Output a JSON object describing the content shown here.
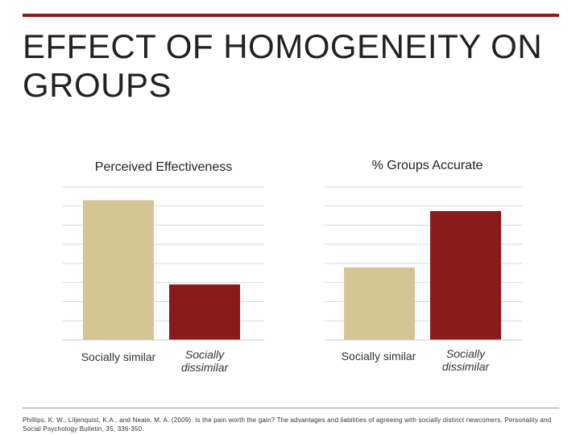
{
  "slide": {
    "title": "EFFECT OF HOMOGENEITY ON GROUPS",
    "citation": "Phillips, K. W., Liljenquist, K.A., and Neale, M. A. (2009). Is the pain worth the gain? The advantages and liabilities of agreeing with socially distinct newcomers. Personality and Social Psychology Bulletin, 35, 336-350."
  },
  "colors": {
    "accent": "#8c1b1e",
    "similar": "#d5c595",
    "dissimilar": "#8b1a1a",
    "grid": "#d9d9d9"
  },
  "chart_data": [
    {
      "type": "bar",
      "title": "Perceived Effectiveness",
      "categories": [
        "Socially similar",
        "Socially dissimilar"
      ],
      "values": [
        7.3,
        2.9
      ],
      "ylim": [
        0,
        8
      ],
      "grid": true,
      "italic_categories": [
        false,
        true
      ]
    },
    {
      "type": "bar",
      "title": "% Groups Accurate",
      "categories": [
        "Socially similar",
        "Socially dissimilar"
      ],
      "values": [
        45,
        80
      ],
      "ylim": [
        0,
        95
      ],
      "grid": true,
      "italic_categories": [
        false,
        true
      ]
    }
  ]
}
